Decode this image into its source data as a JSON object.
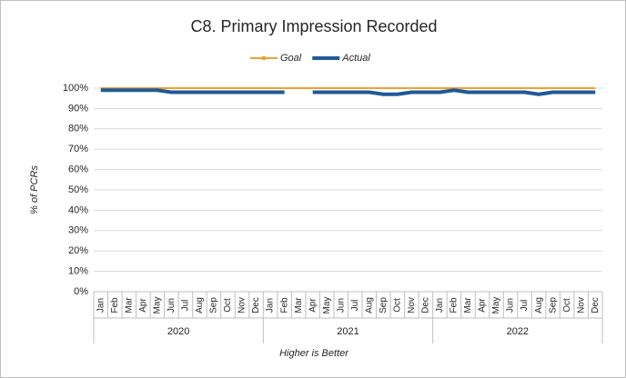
{
  "chart_data": {
    "type": "line",
    "title": "C8. Primary Impression Recorded",
    "x_label": "Higher is Better",
    "y_label": "% of PCRs",
    "categories": [
      "Jan",
      "Feb",
      "Mar",
      "Apr",
      "May",
      "Jun",
      "Jul",
      "Aug",
      "Sep",
      "Oct",
      "Nov",
      "Dec",
      "Jan",
      "Feb",
      "Mar",
      "Apr",
      "May",
      "Jun",
      "Jul",
      "Aug",
      "Sep",
      "Oct",
      "Nov",
      "Dec",
      "Jan",
      "Feb",
      "Mar",
      "Apr",
      "May",
      "Jun",
      "Jul",
      "Aug",
      "Sep",
      "Oct",
      "Nov",
      "Dec"
    ],
    "year_groups": [
      "2020",
      "2021",
      "2022"
    ],
    "series": [
      {
        "name": "Goal",
        "color": "#f0a030",
        "values": [
          100,
          100,
          100,
          100,
          100,
          100,
          100,
          100,
          100,
          100,
          100,
          100,
          100,
          100,
          100,
          100,
          100,
          100,
          100,
          100,
          100,
          100,
          100,
          100,
          100,
          100,
          100,
          100,
          100,
          100,
          100,
          100,
          100,
          100,
          100,
          100
        ]
      },
      {
        "name": "Actual",
        "color": "#1f5a96",
        "values": [
          99,
          99,
          99,
          99,
          99,
          98,
          98,
          98,
          98,
          98,
          98,
          98,
          98,
          98,
          null,
          98,
          98,
          98,
          98,
          98,
          97,
          97,
          98,
          98,
          98,
          99,
          98,
          98,
          98,
          98,
          98,
          97,
          98,
          98,
          98,
          98
        ]
      }
    ],
    "ylim": [
      0,
      100
    ],
    "yticks": [
      {
        "value": 0,
        "label": "0%"
      },
      {
        "value": 10,
        "label": "10%"
      },
      {
        "value": 20,
        "label": "20%"
      },
      {
        "value": 30,
        "label": "30%"
      },
      {
        "value": 40,
        "label": "40%"
      },
      {
        "value": 50,
        "label": "50%"
      },
      {
        "value": 60,
        "label": "60%"
      },
      {
        "value": 70,
        "label": "70%"
      },
      {
        "value": 80,
        "label": "80%"
      },
      {
        "value": 90,
        "label": "90%"
      },
      {
        "value": 100,
        "label": "100%"
      }
    ],
    "grid": true,
    "legend": "top"
  }
}
